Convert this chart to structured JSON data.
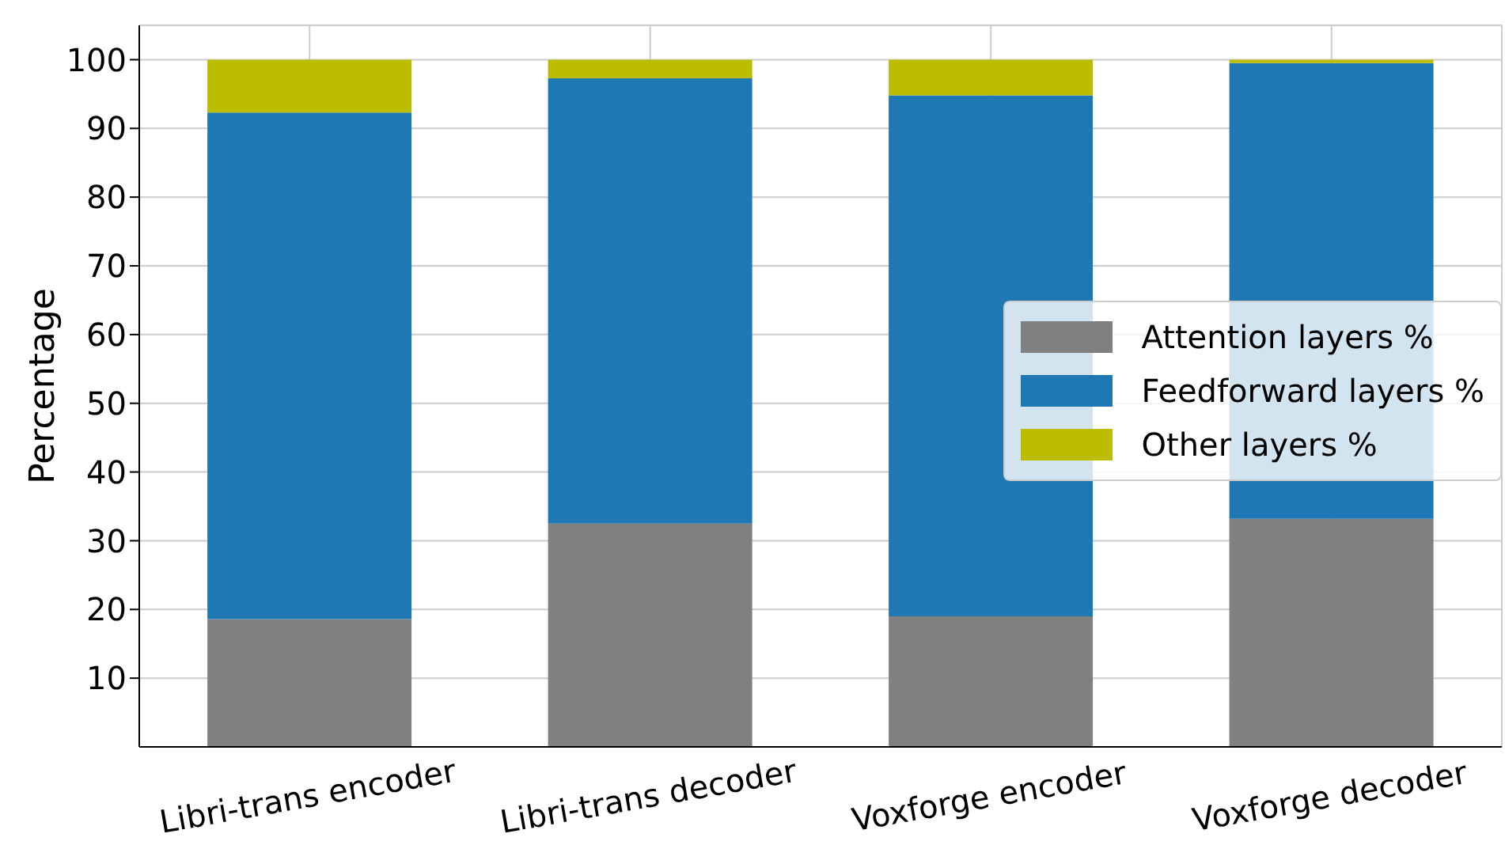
{
  "chart_data": {
    "type": "bar",
    "stacked": true,
    "ylabel": "Percentage",
    "categories": [
      "Libri-trans encoder",
      "Libri-trans decoder",
      "Voxforge encoder",
      "Voxforge decoder"
    ],
    "series": [
      {
        "name": "Attention layers %",
        "color": "#808080",
        "values": [
          18.6,
          32.5,
          19.0,
          33.2
        ]
      },
      {
        "name": "Feedforward layers %",
        "color": "#1f77b4",
        "values": [
          73.7,
          64.8,
          75.8,
          66.3
        ]
      },
      {
        "name": "Other layers %",
        "color": "#bcbd00",
        "values": [
          7.7,
          2.7,
          5.2,
          0.5
        ]
      }
    ],
    "ylim": [
      0,
      105
    ],
    "yticks": [
      10,
      20,
      30,
      40,
      50,
      60,
      70,
      80,
      90,
      100
    ],
    "grid": true,
    "legend": "right"
  }
}
